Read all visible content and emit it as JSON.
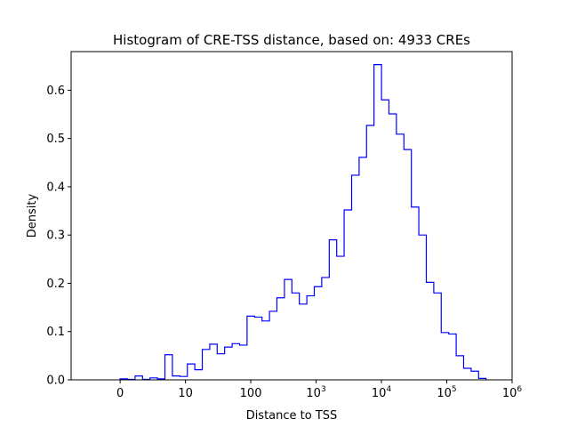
{
  "chart_data": {
    "type": "histogram-step",
    "title": "Histogram of CRE-TSS distance, based on: 4933 CREs",
    "xlabel": "Distance to TSS",
    "ylabel": "Density",
    "x_scale": "symlog",
    "xlim": [
      -0.75,
      6.0
    ],
    "ylim": [
      0,
      0.68
    ],
    "x_ticks": [
      {
        "value": 0,
        "base": "0",
        "exp": ""
      },
      {
        "value": 1,
        "base": "10",
        "exp": ""
      },
      {
        "value": 2,
        "base": "100",
        "exp": ""
      },
      {
        "value": 3,
        "base": "10",
        "exp": "3"
      },
      {
        "value": 4,
        "base": "10",
        "exp": "4"
      },
      {
        "value": 5,
        "base": "10",
        "exp": "5"
      },
      {
        "value": 6,
        "base": "10",
        "exp": "6"
      }
    ],
    "y_ticks": [
      "0.0",
      "0.1",
      "0.2",
      "0.3",
      "0.4",
      "0.5",
      "0.6"
    ],
    "bin_edges": [
      0.0,
      0.114,
      0.229,
      0.343,
      0.457,
      0.572,
      0.686,
      0.8,
      0.915,
      1.029,
      1.143,
      1.258,
      1.372,
      1.486,
      1.6,
      1.715,
      1.829,
      1.943,
      2.058,
      2.172,
      2.286,
      2.4,
      2.515,
      2.629,
      2.743,
      2.858,
      2.972,
      3.086,
      3.201,
      3.315,
      3.429,
      3.544,
      3.658,
      3.772,
      3.886,
      4.001,
      4.115,
      4.229,
      4.344,
      4.458,
      4.572,
      4.687,
      4.801,
      4.915,
      5.03,
      5.144,
      5.258,
      5.373,
      5.487,
      5.601
    ],
    "density": [
      0.002,
      0.001,
      0.008,
      0.001,
      0.004,
      0.002,
      0.052,
      0.008,
      0.007,
      0.033,
      0.021,
      0.063,
      0.074,
      0.054,
      0.068,
      0.075,
      0.072,
      0.132,
      0.13,
      0.122,
      0.142,
      0.17,
      0.208,
      0.18,
      0.157,
      0.174,
      0.193,
      0.212,
      0.29,
      0.256,
      0.352,
      0.424,
      0.461,
      0.527,
      0.653,
      0.58,
      0.551,
      0.509,
      0.477,
      0.358,
      0.3,
      0.202,
      0.18,
      0.098,
      0.095,
      0.05,
      0.024,
      0.018,
      0.003
    ],
    "color": "#0000ff",
    "grid": false,
    "legend": "none"
  }
}
